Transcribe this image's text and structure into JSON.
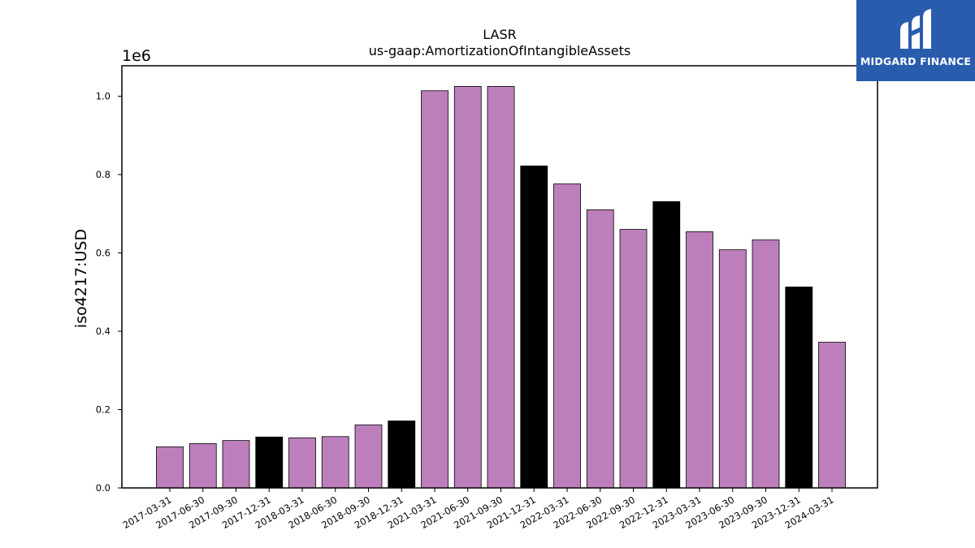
{
  "brand": {
    "name": "MIDGARD FINANCE",
    "logo_color": "#2a5cae"
  },
  "chart_data": {
    "type": "bar",
    "title": "LASR",
    "subtitle": "us-gaap:AmortizationOfIntangibleAssets",
    "ylabel": "iso4217:USD",
    "xlabel": "",
    "y_scale_label": "1e6",
    "ylim": [
      0,
      1.08
    ],
    "yticks": [
      "0.0",
      "0.2",
      "0.4",
      "0.6",
      "0.8",
      "1.0"
    ],
    "grid": false,
    "colors": {
      "quarter": "#bc7fbc",
      "year_end": "#000000"
    },
    "categories": [
      "2017-03-31",
      "2017-06-30",
      "2017-09-30",
      "2017-12-31",
      "2018-03-31",
      "2018-06-30",
      "2018-09-30",
      "2018-12-31",
      "2021-03-31",
      "2021-06-30",
      "2021-09-30",
      "2021-12-31",
      "2022-03-31",
      "2022-06-30",
      "2022-09-30",
      "2022-12-31",
      "2023-03-31",
      "2023-06-30",
      "2023-09-30",
      "2023-12-31",
      "2024-03-31"
    ],
    "values": [
      0.105,
      0.113,
      0.121,
      0.13,
      0.128,
      0.131,
      0.161,
      0.171,
      1.014,
      1.025,
      1.025,
      0.822,
      0.776,
      0.71,
      0.66,
      0.731,
      0.654,
      0.608,
      0.633,
      0.513,
      0.372
    ],
    "year_end": [
      false,
      false,
      false,
      true,
      false,
      false,
      false,
      true,
      false,
      false,
      false,
      true,
      false,
      false,
      false,
      true,
      false,
      false,
      false,
      true,
      false
    ]
  }
}
